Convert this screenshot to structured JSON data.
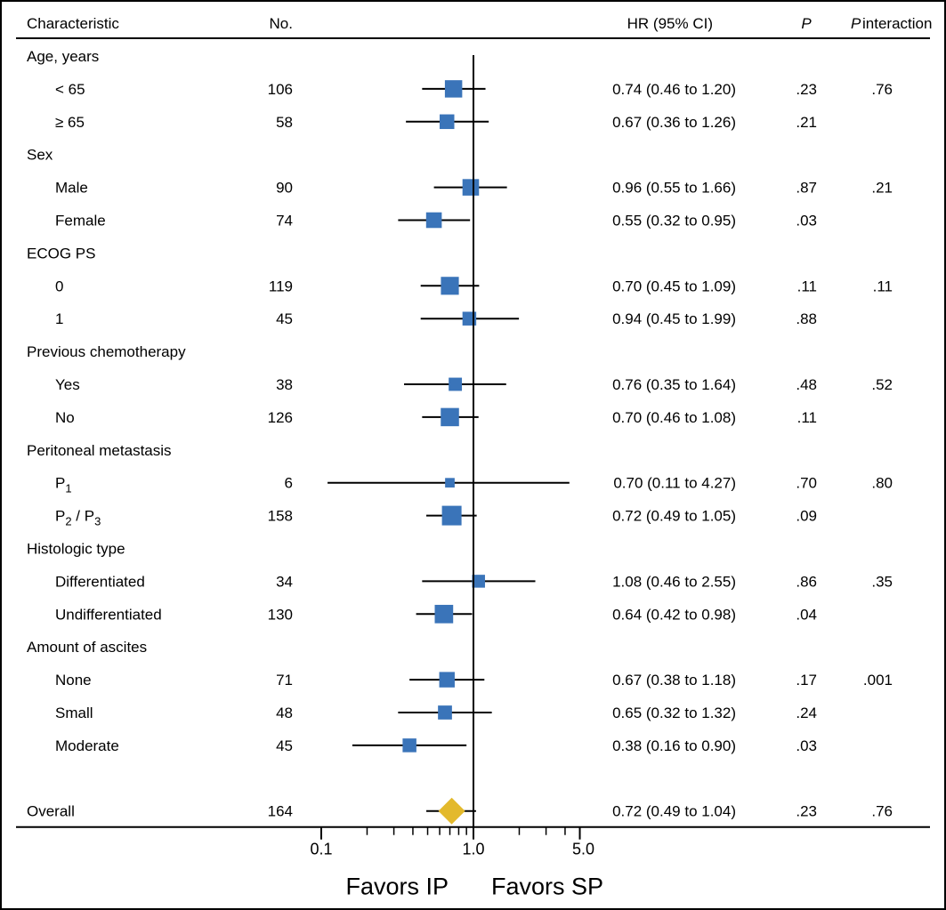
{
  "chart_data": {
    "type": "forest",
    "title": "",
    "columns": {
      "characteristic": "Characteristic",
      "no": "No.",
      "hr": "HR (95% CI)",
      "p": "P",
      "p_interaction_main": "P",
      "p_interaction_sub": "interaction"
    },
    "rows": [
      {
        "kind": "group",
        "label": "Age, years"
      },
      {
        "kind": "item",
        "label": "< 65",
        "n": "106",
        "hr": 0.74,
        "lo": 0.46,
        "hi": 1.2,
        "ci_text": "0.74 (0.46 to 1.20)",
        "p": ".23",
        "pint": ".76"
      },
      {
        "kind": "item",
        "label": "≥ 65",
        "n": "58",
        "hr": 0.67,
        "lo": 0.36,
        "hi": 1.26,
        "ci_text": "0.67 (0.36 to 1.26)",
        "p": ".21",
        "pint": ""
      },
      {
        "kind": "group",
        "label": "Sex"
      },
      {
        "kind": "item",
        "label": "Male",
        "n": "90",
        "hr": 0.96,
        "lo": 0.55,
        "hi": 1.66,
        "ci_text": "0.96 (0.55 to 1.66)",
        "p": ".87",
        "pint": ".21"
      },
      {
        "kind": "item",
        "label": "Female",
        "n": "74",
        "hr": 0.55,
        "lo": 0.32,
        "hi": 0.95,
        "ci_text": "0.55 (0.32 to 0.95)",
        "p": ".03",
        "pint": ""
      },
      {
        "kind": "group",
        "label": "ECOG PS"
      },
      {
        "kind": "item",
        "label": "0",
        "n": "119",
        "hr": 0.7,
        "lo": 0.45,
        "hi": 1.09,
        "ci_text": "0.70 (0.45 to 1.09)",
        "p": ".11",
        "pint": ".11"
      },
      {
        "kind": "item",
        "label": "1",
        "n": "45",
        "hr": 0.94,
        "lo": 0.45,
        "hi": 1.99,
        "ci_text": "0.94 (0.45 to 1.99)",
        "p": ".88",
        "pint": ""
      },
      {
        "kind": "group",
        "label": "Previous chemotherapy"
      },
      {
        "kind": "item",
        "label": "Yes",
        "n": "38",
        "hr": 0.76,
        "lo": 0.35,
        "hi": 1.64,
        "ci_text": "0.76 (0.35 to 1.64)",
        "p": ".48",
        "pint": ".52"
      },
      {
        "kind": "item",
        "label": "No",
        "n": "126",
        "hr": 0.7,
        "lo": 0.46,
        "hi": 1.08,
        "ci_text": "0.70 (0.46 to 1.08)",
        "p": ".11",
        "pint": ""
      },
      {
        "kind": "group",
        "label": "Peritoneal metastasis"
      },
      {
        "kind": "item",
        "label": "P",
        "label_sub": "1",
        "n": "6",
        "hr": 0.7,
        "lo": 0.11,
        "hi": 4.27,
        "ci_text": "0.70 (0.11 to 4.27)",
        "p": ".70",
        "pint": ".80"
      },
      {
        "kind": "item",
        "label": "P",
        "label_sub": "2",
        "label_mid": " / P",
        "label_sub2": "3",
        "n": "158",
        "hr": 0.72,
        "lo": 0.49,
        "hi": 1.05,
        "ci_text": "0.72 (0.49 to 1.05)",
        "p": ".09",
        "pint": ""
      },
      {
        "kind": "group",
        "label": "Histologic type"
      },
      {
        "kind": "item",
        "label": "Differentiated",
        "n": "34",
        "hr": 1.08,
        "lo": 0.46,
        "hi": 2.55,
        "ci_text": "1.08 (0.46 to 2.55)",
        "p": ".86",
        "pint": ".35"
      },
      {
        "kind": "item",
        "label": "Undifferentiated",
        "n": "130",
        "hr": 0.64,
        "lo": 0.42,
        "hi": 0.98,
        "ci_text": "0.64 (0.42 to 0.98)",
        "p": ".04",
        "pint": ""
      },
      {
        "kind": "group",
        "label": "Amount of ascites"
      },
      {
        "kind": "item",
        "label": "None",
        "n": "71",
        "hr": 0.67,
        "lo": 0.38,
        "hi": 1.18,
        "ci_text": "0.67 (0.38 to 1.18)",
        "p": ".17",
        "pint": ".001"
      },
      {
        "kind": "item",
        "label": "Small",
        "n": "48",
        "hr": 0.65,
        "lo": 0.32,
        "hi": 1.32,
        "ci_text": "0.65 (0.32 to 1.32)",
        "p": ".24",
        "pint": ""
      },
      {
        "kind": "item",
        "label": "Moderate",
        "n": "45",
        "hr": 0.38,
        "lo": 0.16,
        "hi": 0.9,
        "ci_text": "0.38 (0.16 to 0.90)",
        "p": ".03",
        "pint": ""
      },
      {
        "kind": "spacer"
      },
      {
        "kind": "overall",
        "label": "Overall",
        "n": "164",
        "hr": 0.72,
        "lo": 0.49,
        "hi": 1.04,
        "ci_text": "0.72 (0.49 to 1.04)",
        "p": ".23",
        "pint": ".76"
      }
    ],
    "x_axis": {
      "scale": "log",
      "range": [
        0.1,
        5.0
      ],
      "major_ticks": [
        {
          "value": 0.1,
          "label": "0.1"
        },
        {
          "value": 1.0,
          "label": "1.0"
        },
        {
          "value": 5.0,
          "label": "5.0"
        }
      ],
      "minor_ticks": [
        0.2,
        0.3,
        0.4,
        0.5,
        0.6,
        0.7,
        0.8,
        0.9,
        2,
        3,
        4
      ],
      "reference_line": 1.0
    },
    "favors_left": "Favors IP",
    "favors_right": "Favors SP",
    "colors": {
      "marker": "#3a74b9",
      "overall": "#e3b92c",
      "line": "#000000"
    }
  }
}
